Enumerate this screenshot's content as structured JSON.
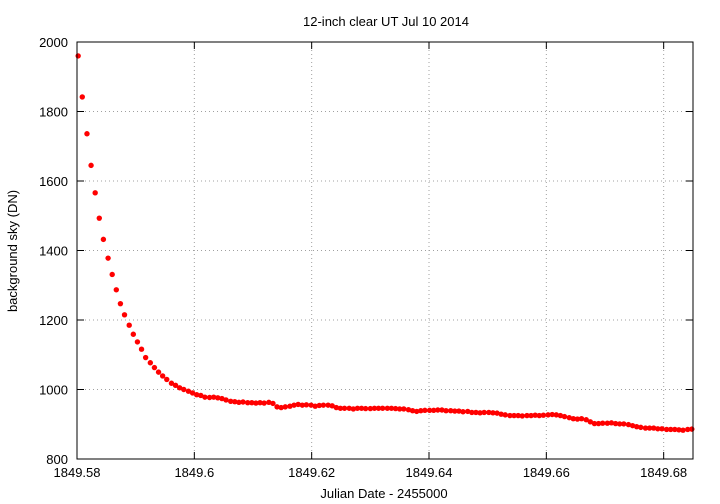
{
  "chart_data": {
    "type": "scatter",
    "title": "12-inch clear UT Jul 10 2014",
    "xlabel": "Julian Date - 2455000",
    "ylabel": "background sky (DN)",
    "xlim": [
      1849.58,
      1849.685
    ],
    "ylim": [
      800,
      2000
    ],
    "xticks": [
      1849.58,
      1849.6,
      1849.62,
      1849.64,
      1849.66,
      1849.68
    ],
    "xtick_labels": [
      "1849.58",
      "1849.6",
      "1849.62",
      "1849.64",
      "1849.66",
      "1849.68"
    ],
    "yticks": [
      800,
      1000,
      1200,
      1400,
      1600,
      1800,
      2000
    ],
    "ytick_labels": [
      "800",
      "1000",
      "1200",
      "1400",
      "1600",
      "1800",
      "2000"
    ],
    "grid": true,
    "marker_color": "#ff0000",
    "series": [
      {
        "x": [
          1849.5802,
          1849.5809,
          1849.5817,
          1849.5824,
          1849.5831,
          1849.5838,
          1849.5845,
          1849.5853,
          1849.586,
          1849.5867,
          1849.5874,
          1849.5881,
          1849.5889,
          1849.5896,
          1849.5903,
          1849.591,
          1849.5917,
          1849.5925,
          1849.5932,
          1849.5939,
          1849.5946,
          1849.5953,
          1849.5961,
          1849.5968,
          1849.5975,
          1849.5982,
          1849.599,
          1849.5997,
          1849.6004,
          1849.6011,
          1849.6018,
          1849.6026,
          1849.6033,
          1849.604,
          1849.6047,
          1849.6054,
          1849.6062,
          1849.6069,
          1849.6076,
          1849.6083,
          1849.6091,
          1849.6098,
          1849.6105,
          1849.6112,
          1849.6119,
          1849.6127,
          1849.6134,
          1849.6141,
          1849.6148,
          1849.6155,
          1849.6163,
          1849.617,
          1849.6177,
          1849.6184,
          1849.6191,
          1849.6199,
          1849.6206,
          1849.6213,
          1849.622,
          1849.6228,
          1849.6235,
          1849.6242,
          1849.6249,
          1849.6256,
          1849.6264,
          1849.6271,
          1849.6278,
          1849.6285,
          1849.6292,
          1849.63,
          1849.6307,
          1849.6314,
          1849.6321,
          1849.6329,
          1849.6336,
          1849.6343,
          1849.635,
          1849.6357,
          1849.6365,
          1849.6372,
          1849.6379,
          1849.6386,
          1849.6393,
          1849.6401,
          1849.6408,
          1849.6415,
          1849.6422,
          1849.6429,
          1849.6437,
          1849.6444,
          1849.6451,
          1849.6458,
          1849.6466,
          1849.6473,
          1849.648,
          1849.6487,
          1849.6494,
          1849.6502,
          1849.6509,
          1849.6516,
          1849.6523,
          1849.653,
          1849.6538,
          1849.6545,
          1849.6552,
          1849.6559,
          1849.6567,
          1849.6574,
          1849.6581,
          1849.6588,
          1849.6595,
          1849.6603,
          1849.661,
          1849.6617,
          1849.6624,
          1849.6631,
          1849.6639,
          1849.6646,
          1849.6653,
          1849.666,
          1849.6668,
          1849.6675,
          1849.6682,
          1849.6689,
          1849.6696,
          1849.6704,
          1849.6711,
          1849.6718,
          1849.6725,
          1849.6732,
          1849.674,
          1849.6747,
          1849.6754,
          1849.6761,
          1849.6769,
          1849.6776,
          1849.6783,
          1849.679,
          1849.6797,
          1849.6805,
          1849.6812,
          1849.6819,
          1849.6826,
          1849.6833,
          1849.6841,
          1849.6848
        ],
        "y": [
          1960,
          1842,
          1736,
          1645,
          1566,
          1493,
          1432,
          1378,
          1331,
          1287,
          1247,
          1215,
          1185,
          1159,
          1137,
          1116,
          1092,
          1077,
          1063,
          1050,
          1039,
          1029,
          1018,
          1012,
          1005,
          1000,
          995,
          990,
          985,
          983,
          978,
          977,
          978,
          976,
          974,
          970,
          966,
          965,
          963,
          964,
          962,
          962,
          961,
          962,
          961,
          963,
          960,
          950,
          948,
          950,
          952,
          955,
          957,
          955,
          956,
          955,
          952,
          954,
          955,
          955,
          953,
          948,
          946,
          946,
          946,
          944,
          946,
          946,
          945,
          945,
          946,
          946,
          946,
          946,
          946,
          945,
          944,
          944,
          942,
          939,
          937,
          939,
          940,
          940,
          940,
          941,
          941,
          939,
          939,
          938,
          938,
          936,
          937,
          934,
          934,
          933,
          934,
          934,
          933,
          932,
          929,
          927,
          925,
          925,
          925,
          924,
          925,
          925,
          926,
          925,
          926,
          927,
          928,
          927,
          925,
          922,
          919,
          916,
          915,
          916,
          913,
          907,
          902,
          902,
          903,
          903,
          904,
          902,
          901,
          901,
          899,
          896,
          893,
          891,
          889,
          889,
          889,
          887,
          887,
          885,
          885,
          885,
          884,
          883,
          885,
          886
        ]
      }
    ]
  }
}
